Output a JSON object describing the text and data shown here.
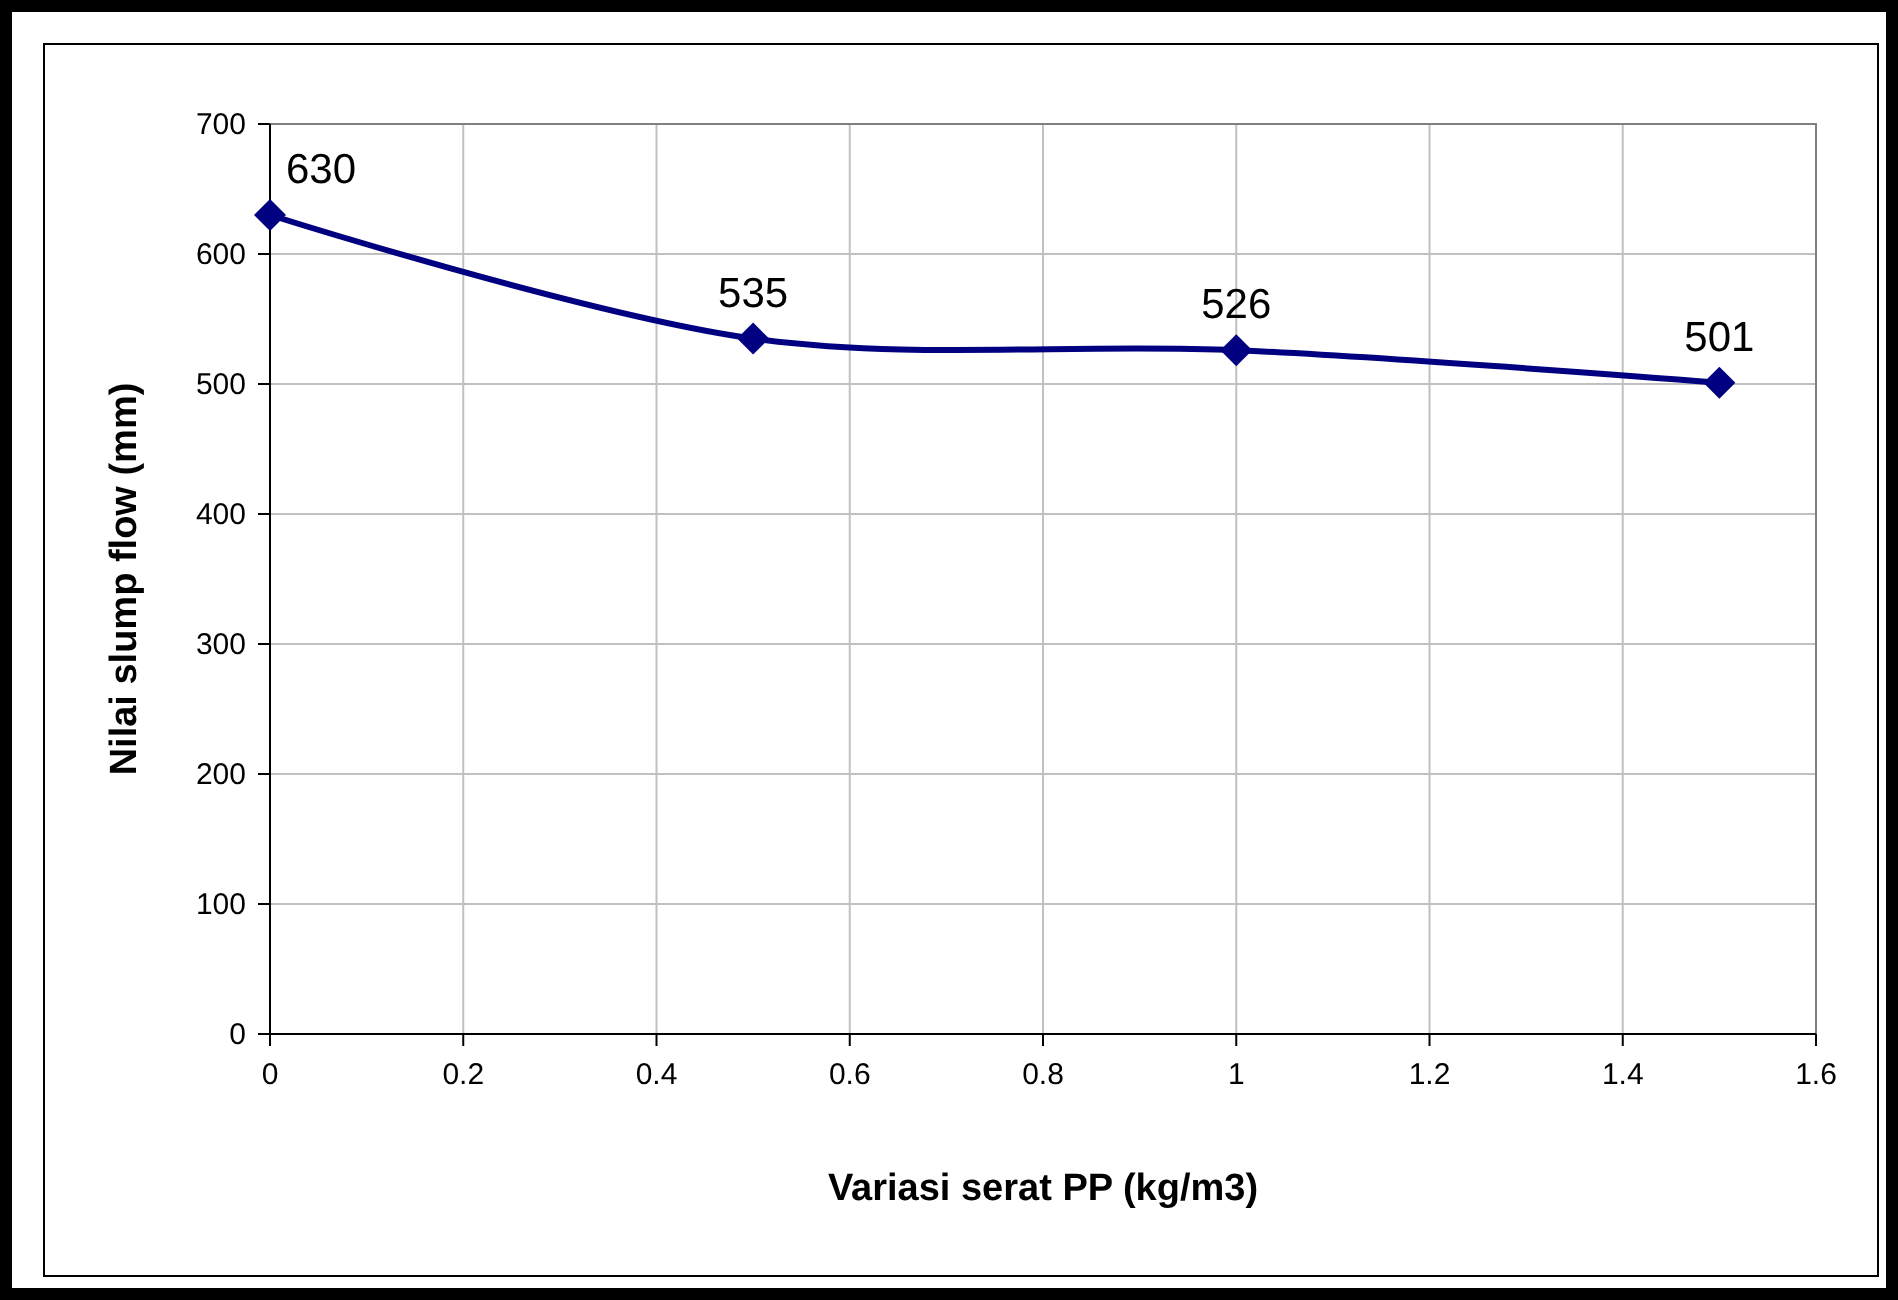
{
  "chart_data": {
    "type": "line",
    "xlabel": "Variasi serat PP (kg/m3)",
    "ylabel": "Nilai slump flow (mm)",
    "x": [
      0,
      0.5,
      1,
      1.5
    ],
    "series": [
      {
        "color": "#000080",
        "values": [
          630,
          535,
          526,
          501
        ]
      }
    ],
    "xlim": [
      0,
      1.6
    ],
    "xticks": [
      0,
      0.2,
      0.4,
      0.6,
      0.8,
      1,
      1.2,
      1.4,
      1.6
    ],
    "ylim": [
      0,
      700
    ],
    "yticks": [
      0,
      100,
      200,
      300,
      400,
      500,
      600,
      700
    ],
    "grid": true,
    "marker": "diamond",
    "line_style": "solid",
    "data_labels": true
  }
}
